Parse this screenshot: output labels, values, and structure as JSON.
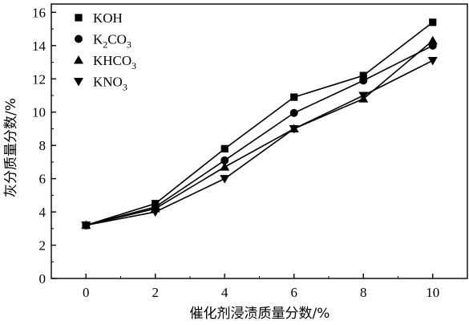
{
  "chart_data": {
    "type": "line",
    "title": "",
    "xlabel": "催化剂浸渍质量分数/%",
    "ylabel": "灰分质量分数/%",
    "x": [
      0,
      2,
      4,
      6,
      8,
      10
    ],
    "x_ticks": [
      "0",
      "2",
      "4",
      "6",
      "8",
      "10"
    ],
    "y_ticks": [
      "0",
      "2",
      "4",
      "6",
      "8",
      "10",
      "12",
      "14",
      "16"
    ],
    "xlim": [
      -1,
      11
    ],
    "ylim": [
      0,
      16.5
    ],
    "grid": false,
    "legend_position": "top-left",
    "series": [
      {
        "name": "KOH",
        "legend_parts": [
          {
            "t": "KOH",
            "sub": false
          }
        ],
        "marker": "square",
        "values": [
          3.2,
          4.5,
          7.8,
          10.9,
          12.2,
          15.4
        ]
      },
      {
        "name": "K2CO3",
        "legend_parts": [
          {
            "t": "K",
            "sub": false
          },
          {
            "t": "2",
            "sub": true
          },
          {
            "t": "CO",
            "sub": false
          },
          {
            "t": "3",
            "sub": true
          }
        ],
        "marker": "circle",
        "values": [
          3.2,
          4.3,
          7.1,
          9.95,
          11.9,
          14.0
        ]
      },
      {
        "name": "KHCO3",
        "legend_parts": [
          {
            "t": "KHCO",
            "sub": false
          },
          {
            "t": "3",
            "sub": true
          }
        ],
        "marker": "triangle-up",
        "values": [
          3.2,
          4.2,
          6.7,
          9.0,
          10.8,
          14.3
        ]
      },
      {
        "name": "KNO3",
        "legend_parts": [
          {
            "t": "KNO",
            "sub": false
          },
          {
            "t": "3",
            "sub": true
          }
        ],
        "marker": "triangle-down",
        "values": [
          3.2,
          4.0,
          6.0,
          9.0,
          11.0,
          13.1
        ]
      }
    ],
    "colors": {
      "line": "#000000",
      "marker": "#000000",
      "axis": "#000000"
    }
  }
}
